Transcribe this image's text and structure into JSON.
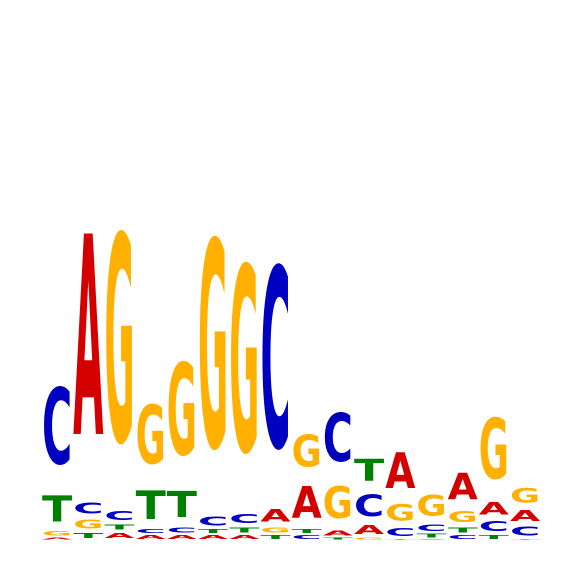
{
  "chart_data": {
    "type": "sequence-logo",
    "alphabet": [
      "A",
      "C",
      "G",
      "T"
    ],
    "colors": {
      "A": "#d40000",
      "C": "#0000c0",
      "G": "#ffb000",
      "T": "#008000"
    },
    "positions": [
      {
        "A": 0.02,
        "C": 0.85,
        "G": 0.05,
        "T": 0.29
      },
      {
        "A": 2.25,
        "C": 0.12,
        "G": 0.1,
        "T": 0.06
      },
      {
        "A": 0.06,
        "C": 0.1,
        "G": 2.32,
        "T": 0.06
      },
      {
        "A": 0.04,
        "C": 0.04,
        "G": 0.66,
        "T": 0.32
      },
      {
        "A": 0.04,
        "C": 0.06,
        "G": 1.03,
        "T": 0.29
      },
      {
        "A": 0.04,
        "C": 0.1,
        "G": 2.32,
        "T": 0.04
      },
      {
        "A": 0.04,
        "C": 0.1,
        "G": 2.08,
        "T": 0.06
      },
      {
        "A": 0.14,
        "C": 2.02,
        "G": 0.06,
        "T": 0.04
      },
      {
        "A": 0.36,
        "C": 0.04,
        "G": 0.36,
        "T": 0.04
      },
      {
        "A": 0.06,
        "C": 0.54,
        "G": 0.36,
        "T": 0.02
      },
      {
        "A": 0.1,
        "C": 0.24,
        "G": 0.02,
        "T": 0.25
      },
      {
        "A": 0.4,
        "C": 0.09,
        "G": 0.18,
        "T": 0.01
      },
      {
        "A": 0.01,
        "C": 0.07,
        "G": 0.23,
        "T": 0.04
      },
      {
        "A": 0.3,
        "C": 0.04,
        "G": 0.12,
        "T": 0.06
      },
      {
        "A": 0.14,
        "C": 0.11,
        "G": 0.68,
        "T": 0.04
      },
      {
        "A": 0.12,
        "C": 0.1,
        "G": 0.16,
        "T": 0.01
      }
    ],
    "title": "",
    "xlabel": "",
    "ylabel": ""
  }
}
